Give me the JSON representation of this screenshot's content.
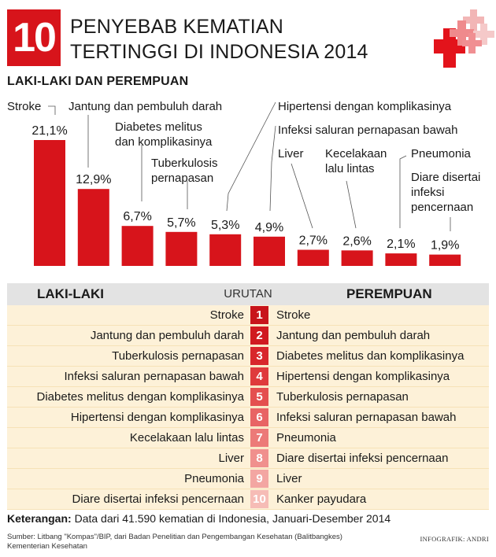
{
  "header": {
    "number": "10",
    "title_line1": "PENYEBAB KEMATIAN",
    "title_line2": "TERTINGGI DI INDONESIA 2014"
  },
  "subtitle": "LAKI-LAKI DAN PEREMPUAN",
  "chart_data": {
    "type": "bar",
    "categories": [
      [
        "Stroke"
      ],
      [
        "Jantung dan pembuluh darah"
      ],
      [
        "Diabetes melitus",
        "dan komplikasinya"
      ],
      [
        "Tuberkulosis",
        "pernapasan"
      ],
      [
        "Hipertensi dengan komplikasinya"
      ],
      [
        "Infeksi saluran pernapasan bawah"
      ],
      [
        "Liver"
      ],
      [
        "Kecelakaan",
        "lalu lintas"
      ],
      [
        "Pneumonia"
      ],
      [
        "Diare disertai",
        "infeksi",
        "pencernaan"
      ]
    ],
    "values": [
      21.1,
      12.9,
      6.7,
      5.7,
      5.3,
      4.9,
      2.7,
      2.6,
      2.1,
      1.9
    ],
    "value_labels": [
      "21,1%",
      "12,9%",
      "6,7%",
      "5,7%",
      "5,3%",
      "4,9%",
      "2,7%",
      "2,6%",
      "2,1%",
      "1,9%"
    ],
    "ylim": [
      0,
      21.1
    ],
    "bar_color": "#d7141b"
  },
  "table": {
    "header_left": "LAKI-LAKI",
    "header_mid": "URUTAN",
    "header_right": "PEREMPUAN",
    "rows": [
      {
        "rank": "1",
        "male": "Stroke",
        "female": "Stroke",
        "color": "#c8141b"
      },
      {
        "rank": "2",
        "male": "Jantung dan pembuluh darah",
        "female": "Jantung dan pembuluh darah",
        "color": "#d01a20"
      },
      {
        "rank": "3",
        "male": "Tuberkulosis pernapasan",
        "female": "Diabetes melitus dan komplikasinya",
        "color": "#d8262b"
      },
      {
        "rank": "4",
        "male": "Infeksi saluran pernapasan bawah",
        "female": "Hipertensi dengan komplikasinya",
        "color": "#df3a3c"
      },
      {
        "rank": "5",
        "male": "Diabetes melitus dengan komplikasinya",
        "female": "Tuberkulosis pernapasan",
        "color": "#e44f4f"
      },
      {
        "rank": "6",
        "male": "Hipertensi dengan komplikasinya",
        "female": "Infeksi saluran pernapasan bawah",
        "color": "#e86464"
      },
      {
        "rank": "7",
        "male": "Kecelakaan lalu lintas",
        "female": "Pneumonia",
        "color": "#ec7a78"
      },
      {
        "rank": "8",
        "male": "Liver",
        "female": "Diare disertai infeksi pencernaan",
        "color": "#f0908d"
      },
      {
        "rank": "9",
        "male": "Pneumonia",
        "female": "Liver",
        "color": "#f3a6a2"
      },
      {
        "rank": "10",
        "male": "Diare disertai infeksi pencernaan",
        "female": "Kanker payudara",
        "color": "#f6bcb6"
      }
    ]
  },
  "note": {
    "label": "Keterangan:",
    "text": "Data dari 41.590 kematian di Indonesia, Januari-Desember 2014"
  },
  "source": {
    "line1": "Sumber: Litbang \"Kompas\"/BIP, dari Badan Penelitian dan Pengembangan Kesehatan (Balitbangkes)",
    "line2": "Kementerian Kesehatan"
  },
  "credit": "INFOGRAFIK: ANDRI",
  "logo_icon": "red-cross-cluster-icon"
}
